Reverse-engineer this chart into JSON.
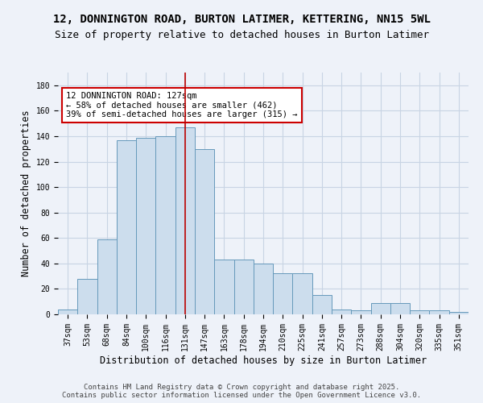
{
  "title": "12, DONNINGTON ROAD, BURTON LATIMER, KETTERING, NN15 5WL",
  "subtitle": "Size of property relative to detached houses in Burton Latimer",
  "xlabel": "Distribution of detached houses by size in Burton Latimer",
  "ylabel": "Number of detached properties",
  "categories": [
    "37sqm",
    "53sqm",
    "68sqm",
    "84sqm",
    "100sqm",
    "116sqm",
    "131sqm",
    "147sqm",
    "163sqm",
    "178sqm",
    "194sqm",
    "210sqm",
    "225sqm",
    "241sqm",
    "257sqm",
    "273sqm",
    "288sqm",
    "304sqm",
    "320sqm",
    "335sqm",
    "351sqm"
  ],
  "values": [
    4,
    28,
    59,
    137,
    139,
    140,
    147,
    130,
    43,
    43,
    40,
    32,
    32,
    15,
    4,
    3,
    9,
    9,
    3,
    3,
    2
  ],
  "bar_color": "#ccdded",
  "bar_edge_color": "#6699bb",
  "grid_color": "#c8d4e4",
  "background_color": "#eef2f9",
  "vline_x": 6,
  "vline_color": "#bb0000",
  "annotation_text": "12 DONNINGTON ROAD: 127sqm\n← 58% of detached houses are smaller (462)\n39% of semi-detached houses are larger (315) →",
  "annotation_box_color": "#ffffff",
  "annotation_box_edge": "#cc0000",
  "ylim": [
    0,
    190
  ],
  "yticks": [
    0,
    20,
    40,
    60,
    80,
    100,
    120,
    140,
    160,
    180
  ],
  "footnote": "Contains HM Land Registry data © Crown copyright and database right 2025.\nContains public sector information licensed under the Open Government Licence v3.0.",
  "title_fontsize": 10,
  "subtitle_fontsize": 9,
  "xlabel_fontsize": 8.5,
  "ylabel_fontsize": 8.5,
  "tick_fontsize": 7,
  "annotation_fontsize": 7.5,
  "footnote_fontsize": 6.5
}
